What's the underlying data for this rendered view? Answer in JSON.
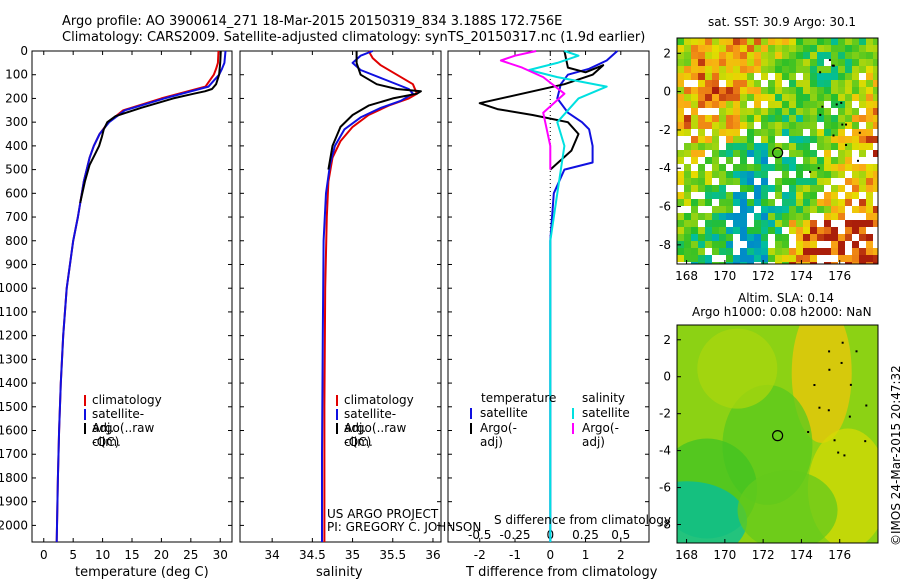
{
  "header": {
    "title_line1": "Argo profile: AO 3900614_271 18-Mar-2015 20150319_834 3.188S 172.756E",
    "title_line2": "Climatology: CARS2009. Satellite-adjusted climatology: synTS_20150317.nc (1.9d earlier)"
  },
  "credits": {
    "project": "US ARGO PROJECT",
    "pi": "PI: GREGORY C. JOHNSON",
    "imos": "©IMOS 24-Mar-2015 20:47:32"
  },
  "colors": {
    "climatology": "#e00000",
    "satellite": "#1010e0",
    "argo": "#000000",
    "sal_satellite": "#00e0e0",
    "sal_argo": "#ff00ff"
  },
  "chart_data": [
    {
      "id": "temperature",
      "type": "line",
      "xlabel": "temperature (deg C)",
      "ylabel": "",
      "xlim": [
        -2,
        32
      ],
      "ylim": [
        2070,
        0
      ],
      "xticks": [
        0,
        5,
        10,
        15,
        20,
        25,
        30
      ],
      "yticks": [
        0,
        100,
        200,
        300,
        400,
        500,
        600,
        700,
        800,
        900,
        1000,
        1100,
        1200,
        1300,
        1400,
        1500,
        1600,
        1700,
        1800,
        1900,
        2000
      ],
      "legend": [
        "climatology",
        "satellite-adj. clim.",
        "Argo(..raw -QC)"
      ],
      "series": [
        {
          "name": "climatology",
          "color": "#e00000",
          "x": [
            29.7,
            29.6,
            29.3,
            28.9,
            27.5,
            20.0,
            13.5,
            11.0,
            9.5,
            8.5,
            7.8,
            6.8,
            5.8,
            5.0,
            3.9,
            3.3,
            2.9,
            2.6,
            2.4,
            2.2
          ],
          "y": [
            0,
            50,
            75,
            100,
            150,
            200,
            250,
            300,
            350,
            400,
            450,
            550,
            700,
            800,
            1000,
            1200,
            1400,
            1600,
            1800,
            2070
          ]
        },
        {
          "name": "satellite-adj. clim.",
          "color": "#1010e0",
          "x": [
            30.9,
            30.7,
            30.3,
            29.8,
            28.0,
            20.5,
            13.8,
            11.1,
            9.5,
            8.5,
            7.8,
            6.8,
            5.8,
            5.0,
            3.9,
            3.3,
            2.9,
            2.6,
            2.4,
            2.2
          ],
          "y": [
            0,
            50,
            75,
            100,
            150,
            200,
            250,
            300,
            350,
            400,
            450,
            550,
            700,
            800,
            1000,
            1200,
            1400,
            1600,
            1800,
            2070
          ]
        },
        {
          "name": "Argo(..raw -QC)",
          "color": "#000000",
          "x": [
            30.1,
            30.0,
            29.8,
            29.3,
            28.6,
            27.4,
            25.5,
            22.0,
            16.5,
            12.2,
            10.8,
            10.2,
            9.9,
            9.4,
            8.6,
            7.8,
            7.0,
            6.2
          ],
          "y": [
            0,
            50,
            100,
            140,
            160,
            170,
            180,
            200,
            240,
            275,
            300,
            330,
            360,
            400,
            440,
            480,
            550,
            640
          ]
        }
      ]
    },
    {
      "id": "salinity",
      "type": "line",
      "xlabel": "salinity",
      "ylabel": "",
      "xlim": [
        33.6,
        36.1
      ],
      "ylim": [
        2070,
        0
      ],
      "xticks": [
        34,
        34.5,
        35,
        35.5,
        36
      ],
      "legend": [
        "climatology",
        "satellite-adj. clim.",
        "Argo(..raw -QC)"
      ],
      "series": [
        {
          "name": "climatology",
          "color": "#e00000",
          "x": [
            35.2,
            35.25,
            35.35,
            35.55,
            35.75,
            35.8,
            35.7,
            35.45,
            35.2,
            35.0,
            34.85,
            34.75,
            34.7,
            34.68,
            34.66,
            34.65,
            34.65
          ],
          "y": [
            0,
            30,
            60,
            100,
            140,
            180,
            200,
            230,
            270,
            320,
            380,
            450,
            550,
            700,
            1000,
            1500,
            2070
          ]
        },
        {
          "name": "satellite-adj. clim.",
          "color": "#1010e0",
          "x": [
            35.25,
            35.1,
            35.0,
            35.1,
            35.4,
            35.7,
            35.75,
            35.6,
            35.35,
            35.1,
            34.9,
            34.78,
            34.72,
            34.67,
            34.64,
            34.63,
            34.62,
            34.62
          ],
          "y": [
            0,
            20,
            50,
            80,
            120,
            160,
            180,
            210,
            240,
            280,
            330,
            400,
            480,
            600,
            800,
            1200,
            1700,
            2070
          ]
        },
        {
          "name": "Argo(..raw -QC)",
          "color": "#000000",
          "x": [
            35.05,
            35.05,
            35.1,
            35.3,
            35.55,
            35.85,
            35.8,
            35.5,
            35.2,
            35.0,
            34.85,
            34.75,
            34.7
          ],
          "y": [
            0,
            50,
            100,
            140,
            160,
            170,
            180,
            200,
            230,
            270,
            320,
            400,
            500
          ]
        }
      ]
    },
    {
      "id": "difference",
      "type": "line",
      "xlabel": "T difference from climatology",
      "xlabel2": "S difference from climatology",
      "xlim": [
        -2.9,
        2.8
      ],
      "ylim": [
        2070,
        0
      ],
      "xticks": [
        -2,
        -1,
        0,
        1,
        2
      ],
      "xticks_salinity": [
        -0.5,
        -0.25,
        0,
        0.25,
        0.5
      ],
      "xtick_labels_salinity": [
        "-0.5",
        "-0.25",
        "0",
        "0.25",
        "0.5"
      ],
      "legend_title_left": "temperature",
      "legend_title_right": "salinity",
      "legend_left": [
        "satellite",
        "Argo(-adj)"
      ],
      "legend_right": [
        "satellite",
        "Argo(-adj)"
      ],
      "series": [
        {
          "name": "T satellite",
          "color": "#1010e0",
          "x": [
            1.9,
            1.6,
            1.1,
            0.5,
            0.3,
            0.2,
            0.5,
            0.9,
            1.1,
            1.2,
            1.2,
            0.4,
            0.1,
            0.0,
            0.0,
            0.0
          ],
          "y": [
            0,
            40,
            75,
            100,
            140,
            200,
            260,
            300,
            330,
            400,
            470,
            500,
            600,
            800,
            1200,
            2070
          ]
        },
        {
          "name": "T Argo(-adj)",
          "color": "#000000",
          "x": [
            0.4,
            0.5,
            1.0,
            1.5,
            1.2,
            0.4,
            -2.0,
            -1.5,
            -0.5,
            0.5,
            0.8,
            0.6,
            0.0
          ],
          "y": [
            0,
            70,
            90,
            60,
            100,
            140,
            220,
            245,
            270,
            300,
            350,
            420,
            500
          ]
        },
        {
          "name": "S satellite",
          "color": "#00e0e0",
          "x": [
            0.1,
            0.2,
            0.05,
            -0.15,
            0.05,
            0.4,
            0.2,
            0.05,
            0.1,
            0.05,
            0.0,
            0.0,
            0.0
          ],
          "y": [
            0,
            20,
            50,
            80,
            110,
            150,
            200,
            300,
            400,
            600,
            800,
            1200,
            2070
          ]
        },
        {
          "name": "S Argo(-adj)",
          "color": "#ff00ff",
          "x": [
            -0.1,
            -0.25,
            -0.35,
            -0.2,
            -0.05,
            0.1,
            -0.05,
            0.0,
            0.0
          ],
          "y": [
            0,
            20,
            40,
            70,
            110,
            180,
            260,
            400,
            500
          ]
        }
      ]
    },
    {
      "id": "sst_map",
      "type": "heatmap",
      "title": "sat. SST: 30.9 Argo: 30.1",
      "xlim": [
        167.5,
        178.0
      ],
      "ylim": [
        -9.0,
        2.8
      ],
      "xticks": [
        168,
        170,
        172,
        174,
        176
      ],
      "yticks": [
        2,
        0,
        -2,
        -4,
        -6,
        -8
      ],
      "argo_position": [
        172.756,
        -3.188
      ]
    },
    {
      "id": "sla_map",
      "type": "heatmap",
      "title": "Altim. SLA: 0.14",
      "subtitle": "Argo h1000: 0.08 h2000: NaN",
      "xlim": [
        167.5,
        178.0
      ],
      "ylim": [
        -9.0,
        2.8
      ],
      "xticks": [
        168,
        170,
        172,
        174,
        176
      ],
      "yticks": [
        2,
        0,
        -2,
        -4,
        -6,
        -8
      ],
      "argo_position": [
        172.756,
        -3.188
      ]
    }
  ]
}
